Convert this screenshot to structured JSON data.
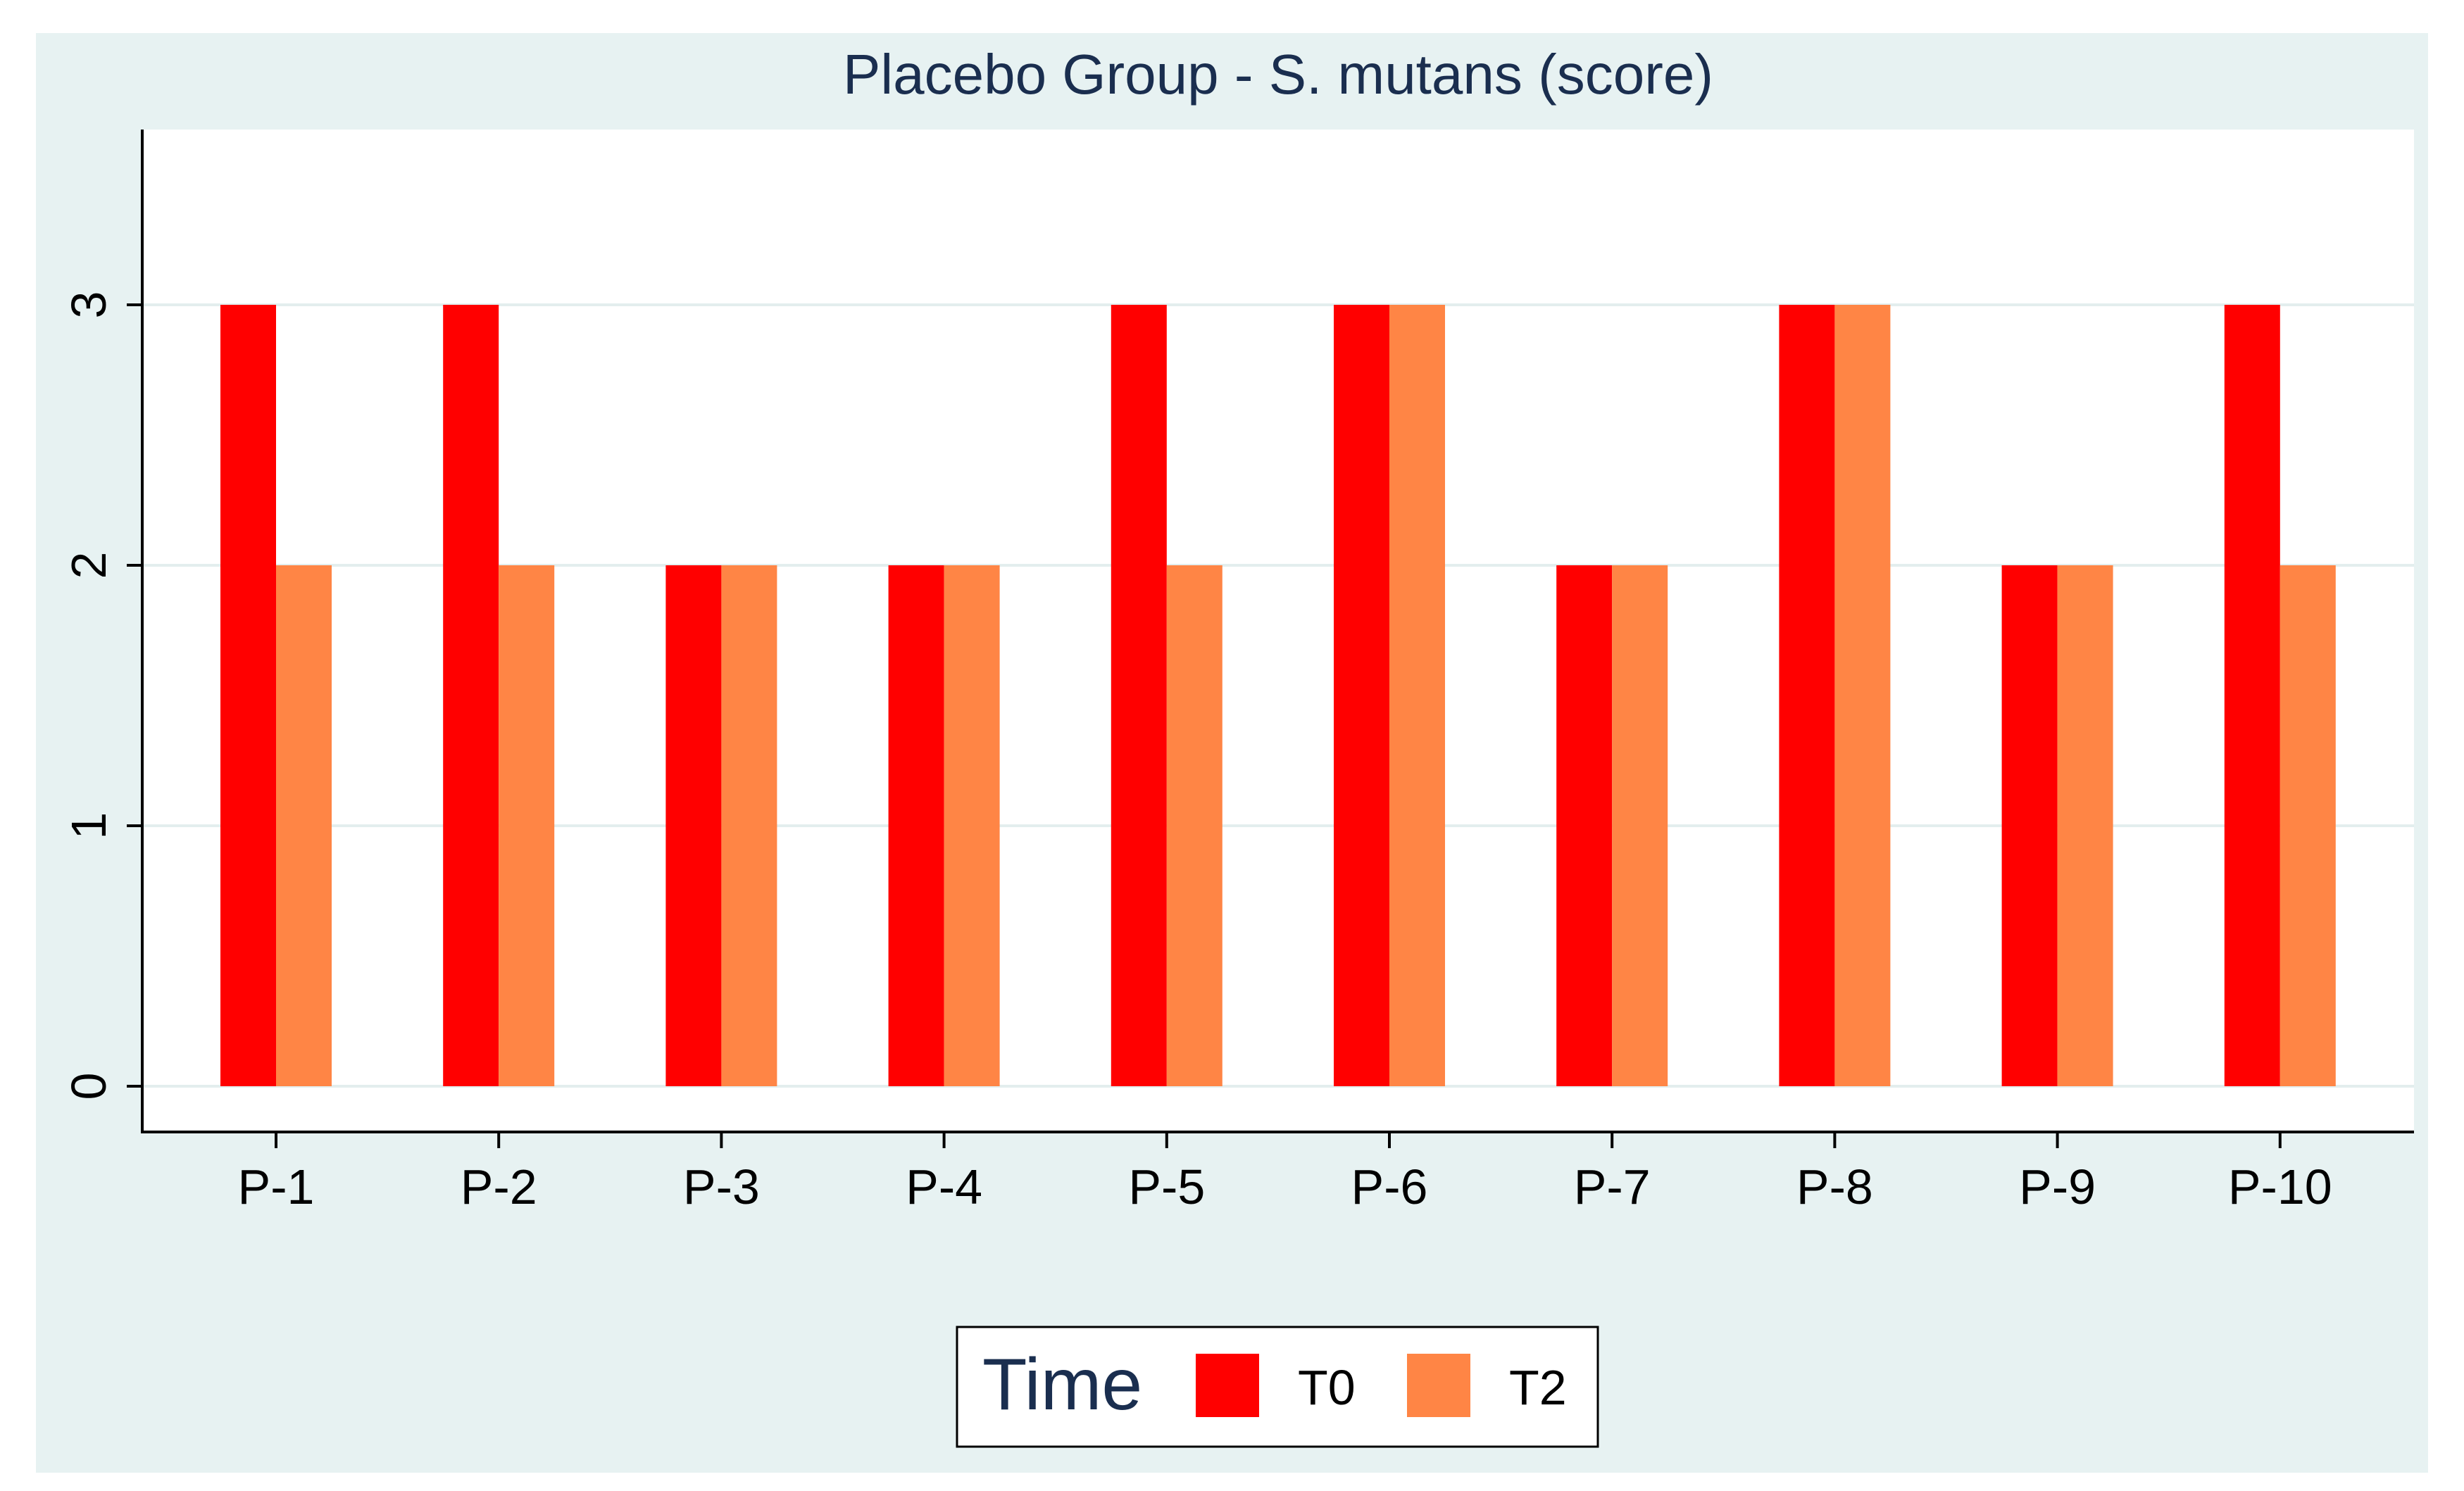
{
  "chart_data": {
    "type": "bar",
    "title": "Placebo Group - S. mutans (score)",
    "xlabel": "",
    "ylabel": "",
    "categories": [
      "P-1",
      "P-2",
      "P-3",
      "P-4",
      "P-5",
      "P-6",
      "P-7",
      "P-8",
      "P-9",
      "P-10"
    ],
    "series": [
      {
        "name": "T0",
        "color": "#ff0000",
        "values": [
          3,
          3,
          2,
          2,
          3,
          3,
          2,
          3,
          2,
          3
        ]
      },
      {
        "name": "T2",
        "color": "#ff8545",
        "values": [
          2,
          2,
          2,
          2,
          2,
          3,
          2,
          3,
          2,
          2
        ]
      }
    ],
    "ylim": [
      0,
      3.6
    ],
    "yticks": [
      "0",
      "1",
      "2",
      "3"
    ],
    "grid": true,
    "legend": {
      "title": "Time",
      "position": "bottom-center"
    },
    "colors": {
      "outer_background": "#e7f2f2",
      "plot_background": "#ffffff",
      "gridline": "#e3eeee"
    }
  }
}
